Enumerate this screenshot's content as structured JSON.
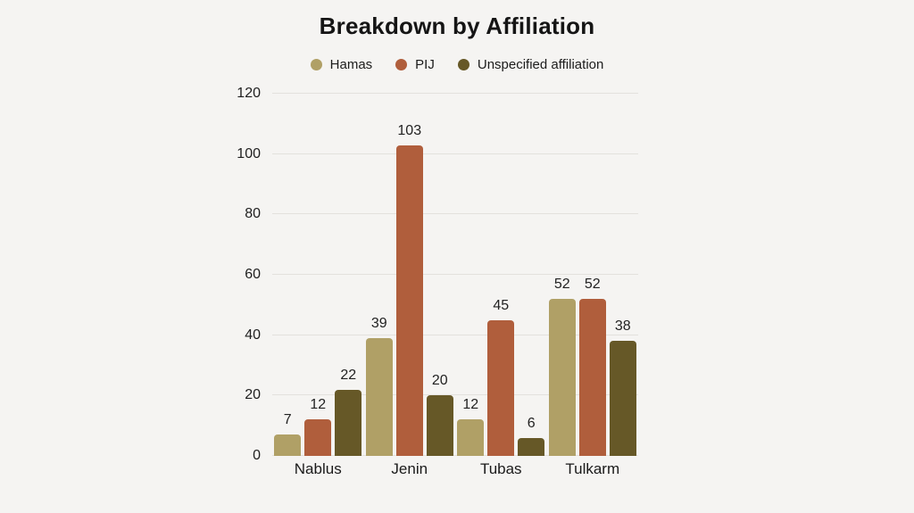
{
  "page": {
    "background_color": "#f5f4f2",
    "gridline_color": "#e3e1dd",
    "text_color": "#1c1c1c"
  },
  "chart_data": {
    "type": "bar",
    "title": "Breakdown by Affiliation",
    "categories": [
      "Nablus",
      "Jenin",
      "Tubas",
      "Tulkarm"
    ],
    "series": [
      {
        "name": "Hamas",
        "color": "#b0a066",
        "values": [
          7,
          39,
          12,
          52
        ]
      },
      {
        "name": "PIJ",
        "color": "#b05e3c",
        "values": [
          12,
          103,
          45,
          52
        ]
      },
      {
        "name": "Unspecified affiliation",
        "color": "#665827",
        "values": [
          22,
          20,
          6,
          38
        ]
      }
    ],
    "xlabel": "",
    "ylabel": "",
    "ylim": [
      0,
      120
    ],
    "ytick_step": 20,
    "yticks": [
      0,
      20,
      40,
      60,
      80,
      100,
      120
    ],
    "grid": true,
    "show_value_labels": true,
    "legend_position": "top"
  }
}
